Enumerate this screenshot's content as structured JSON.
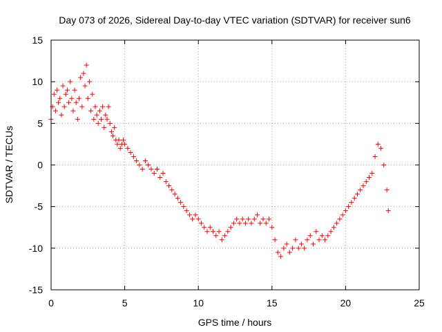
{
  "chart_data": {
    "type": "scatter",
    "title": "Day 073 of 2026, Sidereal Day-to-day VTEC variation (SDTVAR) for receiver sun6",
    "xlabel": "GPS time / hours",
    "ylabel": "SDTVAR / TECUs",
    "xlim": [
      0,
      25
    ],
    "ylim": [
      -15,
      15
    ],
    "xticks": [
      0,
      5,
      10,
      15,
      20,
      25
    ],
    "yticks": [
      -15,
      -10,
      -5,
      0,
      5,
      10,
      15
    ],
    "xtick_labels": [
      "0",
      "5",
      "10",
      "15",
      "20",
      "25"
    ],
    "ytick_labels": [
      "-15",
      "-10",
      "-5",
      "0",
      "5",
      "10",
      "15"
    ],
    "grid": true,
    "marker": "plus",
    "series": [
      {
        "name": "SDTVAR",
        "color": "#ff0000",
        "x": [
          0.0,
          0.1,
          0.2,
          0.3,
          0.4,
          0.5,
          0.6,
          0.7,
          0.8,
          0.9,
          1.0,
          1.1,
          1.2,
          1.3,
          1.4,
          1.5,
          1.6,
          1.7,
          1.8,
          1.9,
          2.0,
          2.1,
          2.2,
          2.3,
          2.4,
          2.5,
          2.6,
          2.7,
          2.8,
          2.9,
          3.0,
          3.1,
          3.2,
          3.3,
          3.4,
          3.5,
          3.6,
          3.7,
          3.8,
          3.9,
          4.0,
          4.1,
          4.2,
          4.3,
          4.4,
          4.5,
          4.6,
          4.7,
          4.8,
          4.9,
          5.0,
          5.2,
          5.4,
          5.6,
          5.8,
          6.0,
          6.2,
          6.4,
          6.6,
          6.8,
          7.0,
          7.2,
          7.4,
          7.6,
          7.8,
          8.0,
          8.2,
          8.4,
          8.6,
          8.8,
          9.0,
          9.2,
          9.4,
          9.6,
          9.8,
          10.0,
          10.2,
          10.4,
          10.6,
          10.8,
          11.0,
          11.2,
          11.4,
          11.6,
          11.8,
          12.0,
          12.2,
          12.4,
          12.6,
          12.8,
          13.0,
          13.2,
          13.4,
          13.6,
          13.8,
          14.0,
          14.2,
          14.4,
          14.6,
          14.8,
          15.0,
          15.2,
          15.4,
          15.6,
          15.8,
          16.0,
          16.2,
          16.4,
          16.6,
          16.8,
          17.0,
          17.2,
          17.4,
          17.6,
          17.8,
          18.0,
          18.2,
          18.4,
          18.6,
          18.8,
          19.0,
          19.2,
          19.4,
          19.6,
          19.8,
          20.0,
          20.2,
          20.4,
          20.6,
          20.8,
          21.0,
          21.2,
          21.4,
          21.6,
          21.8,
          22.0,
          22.2,
          22.4,
          22.6,
          22.8,
          22.9
        ],
        "y": [
          5.5,
          7.0,
          8.5,
          6.5,
          9.0,
          7.5,
          8.0,
          6.0,
          9.5,
          7.0,
          8.5,
          9.0,
          7.5,
          10.0,
          8.0,
          6.5,
          9.0,
          7.5,
          5.5,
          8.0,
          10.5,
          7.0,
          11.0,
          9.5,
          12.0,
          8.0,
          10.0,
          6.5,
          8.5,
          5.5,
          7.0,
          6.0,
          5.0,
          6.5,
          5.5,
          7.0,
          4.5,
          6.0,
          5.5,
          7.0,
          5.0,
          4.0,
          3.5,
          4.5,
          3.0,
          2.5,
          3.0,
          2.0,
          2.5,
          3.0,
          2.5,
          2.0,
          1.5,
          1.0,
          0.5,
          0.0,
          -0.5,
          0.5,
          0.0,
          -0.5,
          -1.0,
          -0.5,
          -1.5,
          -1.0,
          -2.0,
          -2.5,
          -3.0,
          -3.5,
          -4.0,
          -4.5,
          -5.0,
          -5.5,
          -6.0,
          -6.5,
          -6.0,
          -6.5,
          -7.0,
          -7.5,
          -8.0,
          -7.5,
          -8.0,
          -8.5,
          -8.0,
          -9.0,
          -8.5,
          -8.0,
          -7.5,
          -7.0,
          -6.5,
          -7.0,
          -6.5,
          -7.0,
          -6.5,
          -7.0,
          -6.5,
          -6.0,
          -7.0,
          -6.5,
          -7.0,
          -6.5,
          -7.5,
          -9.0,
          -10.5,
          -11.0,
          -10.0,
          -9.5,
          -10.5,
          -10.0,
          -9.0,
          -10.0,
          -9.5,
          -10.0,
          -9.0,
          -8.5,
          -9.5,
          -8.0,
          -9.0,
          -8.5,
          -9.0,
          -8.5,
          -8.0,
          -7.5,
          -7.0,
          -6.5,
          -6.0,
          -5.5,
          -5.0,
          -4.5,
          -4.0,
          -3.5,
          -3.0,
          -2.5,
          -2.0,
          -1.5,
          -1.0,
          1.0,
          2.5,
          2.0,
          0.0,
          -3.0,
          -5.5
        ]
      }
    ]
  }
}
